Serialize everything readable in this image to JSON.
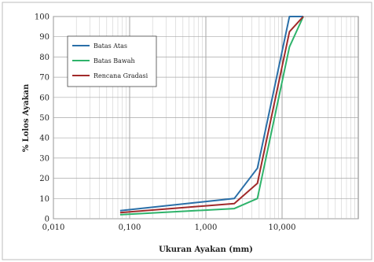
{
  "chart_data": {
    "type": "line",
    "title": "",
    "xlabel": "Ukuran Ayakan (mm)",
    "ylabel": "% Lolos Ayakan",
    "x_scale": "log",
    "xlim": [
      0.01,
      100
    ],
    "ylim": [
      0,
      100
    ],
    "x_ticks": [
      {
        "value": 0.01,
        "label": "0,010"
      },
      {
        "value": 0.1,
        "label": "0,100"
      },
      {
        "value": 1,
        "label": "1,000"
      },
      {
        "value": 10,
        "label": "10,000"
      }
    ],
    "y_ticks": [
      0,
      10,
      20,
      30,
      40,
      50,
      60,
      70,
      80,
      90,
      100
    ],
    "grid": true,
    "legend_position": "top-left",
    "series": [
      {
        "name": "Batas Atas",
        "color": "#2a6fa8",
        "x": [
          0.075,
          2.36,
          4.75,
          12.5,
          19
        ],
        "y": [
          4,
          10,
          25,
          100,
          100
        ]
      },
      {
        "name": "Batas Bawah",
        "color": "#2fb36b",
        "x": [
          0.075,
          2.36,
          4.75,
          12.5,
          19
        ],
        "y": [
          2,
          5,
          10,
          85,
          100
        ]
      },
      {
        "name": "Rencana Gradasi",
        "color": "#a12a2a",
        "x": [
          0.075,
          2.36,
          4.75,
          12.5,
          19
        ],
        "y": [
          3,
          7.5,
          17.5,
          92.5,
          100
        ]
      }
    ]
  }
}
